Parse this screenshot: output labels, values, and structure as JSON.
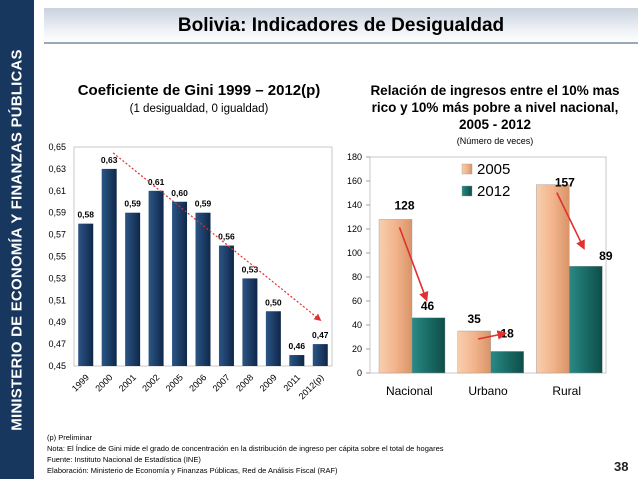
{
  "sidebar": {
    "text": "MINISTERIO DE ECONOMÍA Y FINANZAS PÚBLICAS"
  },
  "header": {
    "title": "Bolivia: Indicadores de Desigualdad"
  },
  "gini": {
    "title": "Coeficiente de Gini 1999 – 2012(p)",
    "subtitle": "(1 desigualdad, 0 igualdad)"
  },
  "ratio": {
    "title_lines": [
      "Relación de ingresos entre el 10% mas",
      "rico y 10% más pobre a nivel nacional,",
      "2005 - 2012"
    ],
    "subtitle": "(Número de veces)"
  },
  "chart_data": [
    {
      "type": "bar",
      "title": "Coeficiente de Gini 1999 – 2012(p)",
      "subtitle": "(1 desigualdad, 0 igualdad)",
      "categories": [
        "1999",
        "2000",
        "2001",
        "2002",
        "2005",
        "2006",
        "2007",
        "2008",
        "2009",
        "2011",
        "2012(p)"
      ],
      "values": [
        0.58,
        0.63,
        0.59,
        0.61,
        0.6,
        0.59,
        0.56,
        0.53,
        0.5,
        0.46,
        0.47
      ],
      "value_labels": [
        "0,58",
        "0,63",
        "0,59",
        "0,61",
        "0,60",
        "0,59",
        "0,56",
        "0,53",
        "0,50",
        "0,46",
        "0,47"
      ],
      "ylim": [
        0.45,
        0.65
      ],
      "yticks": [
        "0,45",
        "0,47",
        "0,49",
        "0,51",
        "0,53",
        "0,55",
        "0,57",
        "0,59",
        "0,61",
        "0,63",
        "0,65"
      ],
      "ytick_values": [
        0.45,
        0.47,
        0.49,
        0.51,
        0.53,
        0.55,
        0.57,
        0.59,
        0.61,
        0.63,
        0.65
      ],
      "bar_color": "#17375e",
      "trend_color": "#e03030"
    },
    {
      "type": "bar",
      "title": "Relación de ingresos entre el 10% mas rico y 10% más pobre a nivel nacional, 2005 - 2012",
      "subtitle": "(Número de veces)",
      "categories": [
        "Nacional",
        "Urbano",
        "Rural"
      ],
      "series": [
        {
          "name": "2005",
          "values": [
            128,
            35,
            157
          ],
          "color": "#f2b48c"
        },
        {
          "name": "2012",
          "values": [
            46,
            18,
            89
          ],
          "color": "#1a6b66"
        }
      ],
      "ylim": [
        0,
        180
      ],
      "yticks": [
        "0",
        "20",
        "40",
        "60",
        "80",
        "100",
        "120",
        "140",
        "160",
        "180"
      ],
      "ytick_values": [
        0,
        20,
        40,
        60,
        80,
        100,
        120,
        140,
        160,
        180
      ],
      "legend": "top-right",
      "arrow_color": "#e03030"
    }
  ],
  "notes": [
    "(p) Preliminar",
    "Nota: El Índice de Gini mide el grado de concentración en la distribución de ingreso per cápita sobre el total de hogares",
    "Fuente: Instituto Nacional de Estadística (INE)",
    "Elaboración: Ministerio de Economía y Finanzas Públicas, Red de Análisis Fiscal (RAF)"
  ],
  "page_number": "38"
}
